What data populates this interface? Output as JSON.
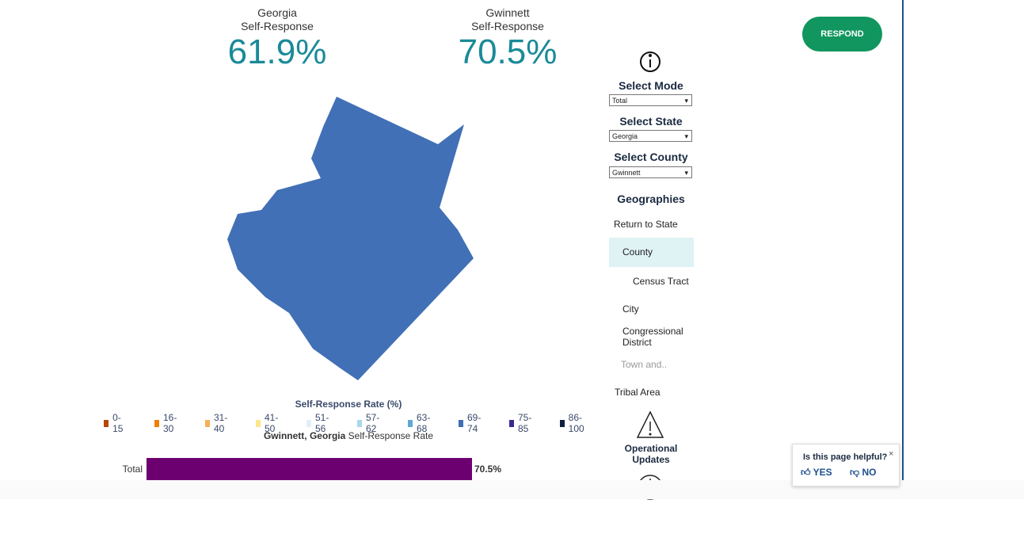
{
  "stats": [
    {
      "place": "Georgia",
      "caption": "Self-Response",
      "value": "61.9%"
    },
    {
      "place": "Gwinnett",
      "caption": "Self-Response",
      "value": "70.5%"
    }
  ],
  "respond": "RESPOND",
  "selectors": [
    {
      "label": "Select Mode",
      "value": "Total"
    },
    {
      "label": "Select State",
      "value": "Georgia"
    },
    {
      "label": "Select County",
      "value": "Gwinnett"
    }
  ],
  "geographies": {
    "title": "Geographies",
    "items": [
      "Return to State",
      "County",
      "Census Tract",
      "City",
      "Congressional District",
      "Town and..",
      "Tribal Area"
    ]
  },
  "operational_updates": "Operational Updates",
  "legend": {
    "title": "Self-Response Rate (%)",
    "items": [
      {
        "label": "0-15",
        "color": "#b5470a"
      },
      {
        "label": "16-30",
        "color": "#f07f0a"
      },
      {
        "label": "31-40",
        "color": "#f7ae57"
      },
      {
        "label": "41-50",
        "color": "#fde58a"
      },
      {
        "label": "51-56",
        "color": "#dff0f8"
      },
      {
        "label": "57-62",
        "color": "#a9d8ec"
      },
      {
        "label": "63-68",
        "color": "#5fa8d8"
      },
      {
        "label": "69-74",
        "color": "#3f6eb5"
      },
      {
        "label": "75-85",
        "color": "#3a2a8f"
      },
      {
        "label": "86-100",
        "color": "#0f1f3d"
      }
    ]
  },
  "chart_data": {
    "type": "bar",
    "title_place": "Gwinnett, Georgia",
    "title": "Self-Response Rate",
    "categories": [
      "Total"
    ],
    "values": [
      70.5
    ],
    "value_labels": [
      "70.5%"
    ],
    "color": "#6d0070",
    "xlim": [
      0,
      100
    ]
  },
  "feedback": {
    "question": "Is this page helpful?",
    "yes": "YES",
    "no": "NO"
  }
}
